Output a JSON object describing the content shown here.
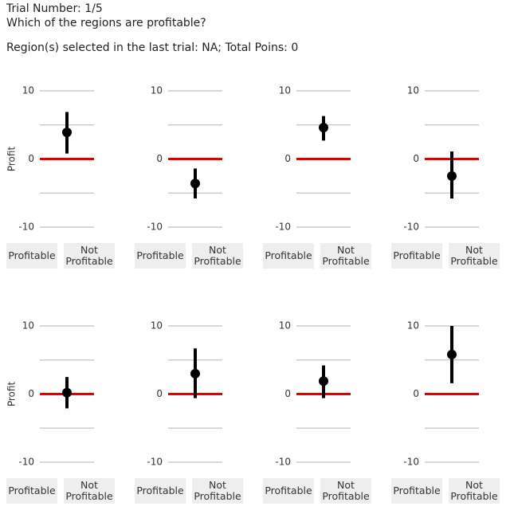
{
  "header": {
    "trial": "Trial Number: 1/5",
    "question": "Which of the regions are profitable?",
    "status": "Region(s) selected in the last trial: NA; Total Poins: 0"
  },
  "buttons": [
    "Profitable",
    "Not Profitable"
  ],
  "chart_data": [
    {
      "type": "pointrange",
      "ylabel": "Profit",
      "value": 3.9,
      "low": 0.8,
      "high": 6.9,
      "ylim": [
        -10,
        10
      ],
      "yticks": [
        -10,
        0,
        10
      ],
      "gridlines": [
        -10,
        -5,
        0,
        5,
        10
      ],
      "grid_color": "#cccccc",
      "zero_line_color": "#e00000",
      "color": "#000000"
    },
    {
      "type": "pointrange",
      "value": -3.6,
      "low": -5.8,
      "high": -1.4,
      "ylim": [
        -10,
        10
      ],
      "yticks": [
        -10,
        0,
        10
      ],
      "gridlines": [
        -10,
        -5,
        0,
        5,
        10
      ],
      "grid_color": "#cccccc",
      "zero_line_color": "#e00000",
      "color": "#000000"
    },
    {
      "type": "pointrange",
      "value": 4.6,
      "low": 2.7,
      "high": 6.3,
      "ylim": [
        -10,
        10
      ],
      "yticks": [
        -10,
        0,
        10
      ],
      "gridlines": [
        -10,
        -5,
        0,
        5,
        10
      ],
      "grid_color": "#cccccc",
      "zero_line_color": "#e00000",
      "color": "#000000"
    },
    {
      "type": "pointrange",
      "value": -2.5,
      "low": -5.8,
      "high": 1.1,
      "ylim": [
        -10,
        10
      ],
      "yticks": [
        -10,
        0,
        10
      ],
      "gridlines": [
        -10,
        -5,
        0,
        5,
        10
      ],
      "grid_color": "#cccccc",
      "zero_line_color": "#e00000",
      "color": "#000000"
    },
    {
      "type": "pointrange",
      "ylabel": "Profit",
      "value": 0.2,
      "low": -2.1,
      "high": 2.5,
      "ylim": [
        -10,
        10
      ],
      "yticks": [
        -10,
        0,
        10
      ],
      "gridlines": [
        -10,
        -5,
        0,
        5,
        10
      ],
      "grid_color": "#cccccc",
      "zero_line_color": "#e00000",
      "color": "#000000"
    },
    {
      "type": "pointrange",
      "value": 3.0,
      "low": -0.6,
      "high": 6.7,
      "ylim": [
        -10,
        10
      ],
      "yticks": [
        -10,
        0,
        10
      ],
      "gridlines": [
        -10,
        -5,
        0,
        5,
        10
      ],
      "grid_color": "#cccccc",
      "zero_line_color": "#e00000",
      "color": "#000000"
    },
    {
      "type": "pointrange",
      "value": 1.9,
      "low": -0.6,
      "high": 4.2,
      "ylim": [
        -10,
        10
      ],
      "yticks": [
        -10,
        0,
        10
      ],
      "gridlines": [
        -10,
        -5,
        0,
        5,
        10
      ],
      "grid_color": "#cccccc",
      "zero_line_color": "#e00000",
      "color": "#000000"
    },
    {
      "type": "pointrange",
      "value": 5.8,
      "low": 1.6,
      "high": 10.0,
      "ylim": [
        -10,
        10
      ],
      "yticks": [
        -10,
        0,
        10
      ],
      "gridlines": [
        -10,
        -5,
        0,
        5,
        10
      ],
      "grid_color": "#cccccc",
      "zero_line_color": "#e00000",
      "color": "#000000"
    }
  ]
}
